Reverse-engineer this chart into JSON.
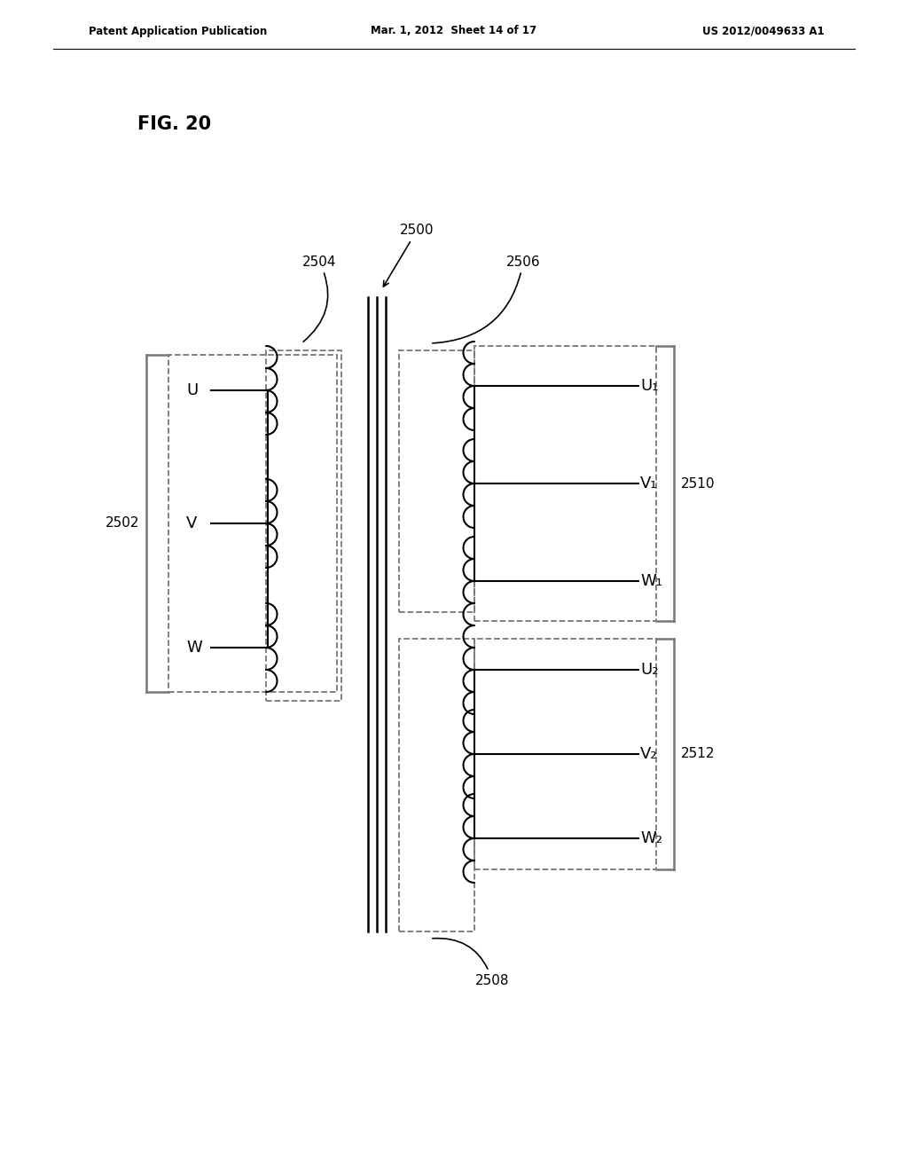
{
  "title": "FIG. 20",
  "header_left": "Patent Application Publication",
  "header_center": "Mar. 1, 2012  Sheet 14 of 17",
  "header_right": "US 2012/0049633 A1",
  "bg_color": "#ffffff",
  "text_color": "#000000",
  "label_2500": "2500",
  "label_2502": "2502",
  "label_2504": "2504",
  "label_2506": "2506",
  "label_2508": "2508",
  "label_2510": "2510",
  "label_2512": "2512",
  "primary_labels": [
    "U",
    "V",
    "W"
  ],
  "secondary1_labels": [
    "U₁",
    "V₁",
    "W₁"
  ],
  "secondary2_labels": [
    "U₂",
    "V₂",
    "W₂"
  ]
}
